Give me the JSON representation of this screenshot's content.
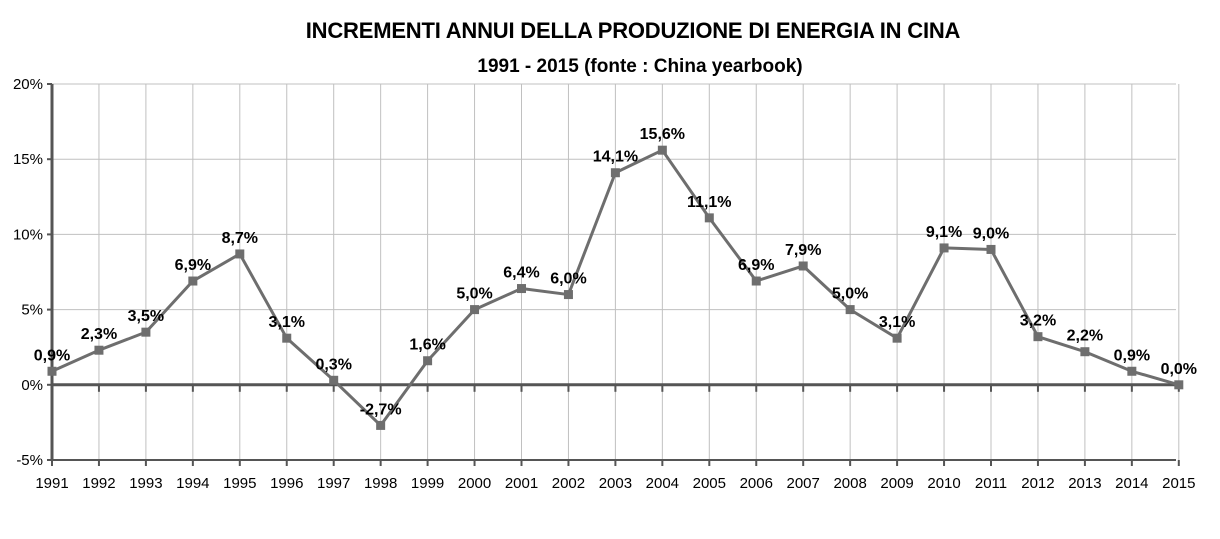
{
  "chart_data": {
    "type": "line",
    "title": "INCREMENTI ANNUI DELLA PRODUZIONE DI ENERGIA IN CINA",
    "subtitle": "1991 - 2015 (fonte : China yearbook)",
    "xlabel": "",
    "ylabel": "",
    "categories": [
      "1991",
      "1992",
      "1993",
      "1994",
      "1995",
      "1996",
      "1997",
      "1998",
      "1999",
      "2000",
      "2001",
      "2002",
      "2003",
      "2004",
      "2005",
      "2006",
      "2007",
      "2008",
      "2009",
      "2010",
      "2011",
      "2012",
      "2013",
      "2014",
      "2015"
    ],
    "series": [
      {
        "values": [
          0.9,
          2.3,
          3.5,
          6.9,
          8.7,
          3.1,
          0.3,
          -2.7,
          1.6,
          5.0,
          6.4,
          6.0,
          14.1,
          15.6,
          11.1,
          6.9,
          7.9,
          5.0,
          3.1,
          9.1,
          9.0,
          3.2,
          2.2,
          0.9,
          0.0
        ],
        "labels": [
          "0,9%",
          "2,3%",
          "3,5%",
          "6,9%",
          "8,7%",
          "3,1%",
          "0,3%",
          "-2,7%",
          "1,6%",
          "5,0%",
          "6,4%",
          "6,0%",
          "14,1%",
          "15,6%",
          "11,1%",
          "6,9%",
          "7,9%",
          "5,0%",
          "3,1%",
          "9,1%",
          "9,0%",
          "3,2%",
          "2,2%",
          "0,9%",
          "0,0%"
        ],
        "color": "#6e6e6e"
      }
    ],
    "ylim": [
      -5,
      20
    ],
    "yticks": [
      -5,
      0,
      5,
      10,
      15,
      20
    ],
    "ytick_labels": [
      "-5%",
      "0%",
      "5%",
      "10%",
      "15%",
      "20%"
    ],
    "grid": true,
    "legend": "none",
    "colors": {
      "line": "#6e6e6e",
      "grid": "#c0c0c0",
      "axis": "#555555"
    }
  }
}
